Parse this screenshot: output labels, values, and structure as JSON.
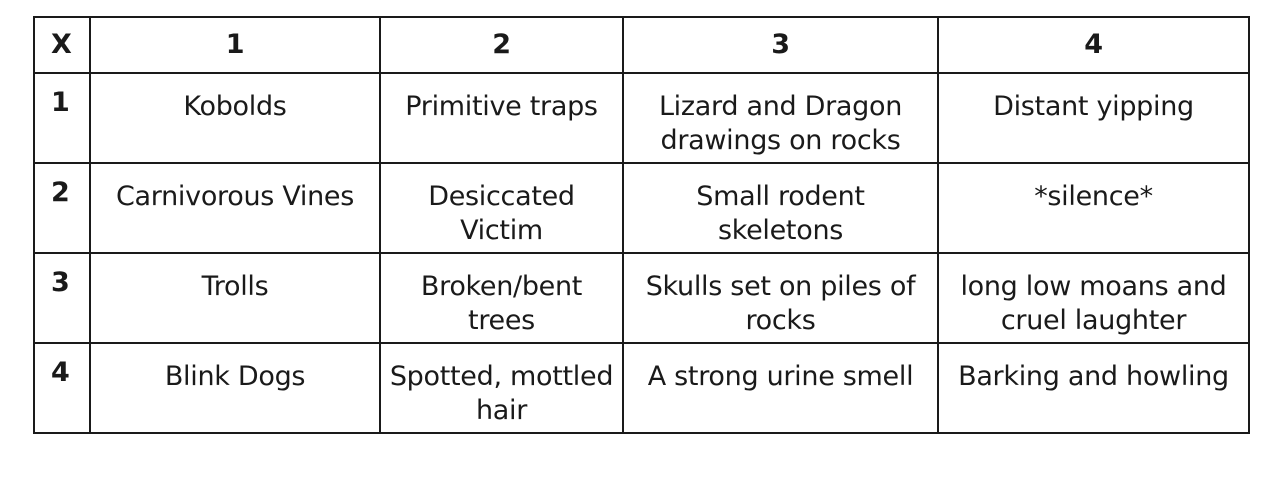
{
  "table": {
    "corner": "X",
    "columns": [
      "1",
      "2",
      "3",
      "4"
    ],
    "rows": [
      {
        "key": "1",
        "cells": [
          "Kobolds",
          "Primitive traps",
          "Lizard and Dragon drawings on rocks",
          "Distant yipping"
        ]
      },
      {
        "key": "2",
        "cells": [
          "Carnivorous Vines",
          "Desiccated Victim",
          "Small rodent skeletons",
          "*silence*"
        ]
      },
      {
        "key": "3",
        "cells": [
          "Trolls",
          "Broken/bent trees",
          "Skulls set on piles of rocks",
          "long low moans and cruel laughter"
        ]
      },
      {
        "key": "4",
        "cells": [
          "Blink Dogs",
          "Spotted, mottled hair",
          "A strong urine smell",
          "Barking and howling"
        ]
      }
    ]
  },
  "footnote": ""
}
